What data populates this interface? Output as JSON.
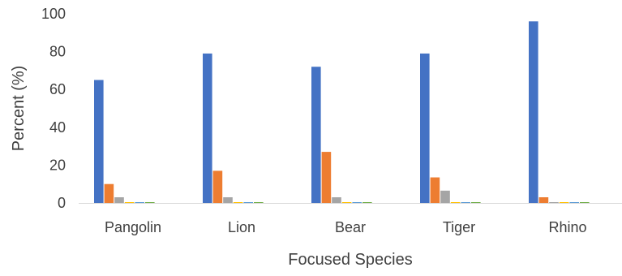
{
  "chart_data": {
    "type": "bar",
    "title": "",
    "xlabel": "Focused Species",
    "ylabel": "Percent (%)",
    "ylim": [
      0,
      100
    ],
    "yticks": [
      0,
      20,
      40,
      60,
      80,
      100
    ],
    "grid": false,
    "legend": "none",
    "categories": [
      "Pangolin",
      "Lion",
      "Bear",
      "Tiger",
      "Rhino"
    ],
    "series": [
      {
        "color": "#4472C4",
        "values": [
          65,
          79,
          72,
          79,
          96
        ]
      },
      {
        "color": "#ED7D31",
        "values": [
          10,
          17,
          27,
          13.5,
          3
        ]
      },
      {
        "color": "#A5A5A5",
        "values": [
          3,
          3,
          3,
          6.5,
          0
        ]
      },
      {
        "color": "#FFC000",
        "values": [
          0,
          0,
          0,
          0,
          0
        ]
      },
      {
        "color": "#5B9BD5",
        "values": [
          0,
          0,
          0,
          0,
          0
        ]
      },
      {
        "color": "#70AD47",
        "values": [
          0,
          0,
          0,
          0,
          0
        ]
      }
    ]
  }
}
